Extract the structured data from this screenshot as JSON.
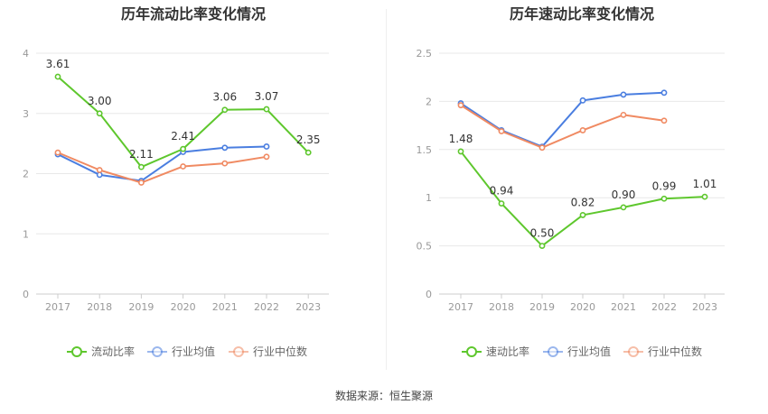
{
  "colors": {
    "main": "#5ec72d",
    "avg": "#4a7ee0",
    "median": "#f08a62"
  },
  "charts": [
    {
      "title": "历年流动比率变化情况",
      "legend": [
        "流动比率",
        "行业均值",
        "行业中位数"
      ]
    },
    {
      "title": "历年速动比率变化情况",
      "legend": [
        "速动比率",
        "行业均值",
        "行业中位数"
      ]
    }
  ],
  "source": "数据来源：恒生聚源",
  "chart_data": [
    {
      "type": "line",
      "title": "历年流动比率变化情况",
      "x": [
        "2017",
        "2018",
        "2019",
        "2020",
        "2021",
        "2022",
        "2023"
      ],
      "ylim": [
        0,
        4
      ],
      "yticks": [
        "0",
        "1",
        "2",
        "3",
        "4"
      ],
      "series": [
        {
          "name": "流动比率",
          "values": [
            3.61,
            3.0,
            2.11,
            2.41,
            3.06,
            3.07,
            2.35
          ],
          "labels": [
            "3.61",
            "3.00",
            "2.11",
            "2.41",
            "3.06",
            "3.07",
            "2.35"
          ]
        },
        {
          "name": "行业均值",
          "values": [
            2.32,
            1.98,
            1.88,
            2.36,
            2.43,
            2.45,
            null
          ]
        },
        {
          "name": "行业中位数",
          "values": [
            2.35,
            2.06,
            1.85,
            2.12,
            2.17,
            2.28,
            null
          ]
        }
      ]
    },
    {
      "type": "line",
      "title": "历年速动比率变化情况",
      "x": [
        "2017",
        "2018",
        "2019",
        "2020",
        "2021",
        "2022",
        "2023"
      ],
      "ylim": [
        0,
        2.5
      ],
      "yticks": [
        "0",
        "0.5",
        "1",
        "1.5",
        "2",
        "2.5"
      ],
      "series": [
        {
          "name": "速动比率",
          "values": [
            1.48,
            0.94,
            0.5,
            0.82,
            0.9,
            0.99,
            1.01
          ],
          "labels": [
            "1.48",
            "0.94",
            "0.50",
            "0.82",
            "0.90",
            "0.99",
            "1.01"
          ]
        },
        {
          "name": "行业均值",
          "values": [
            1.98,
            1.7,
            1.53,
            2.01,
            2.07,
            2.09,
            null
          ]
        },
        {
          "name": "行业中位数",
          "values": [
            1.96,
            1.69,
            1.52,
            1.7,
            1.86,
            1.8,
            null
          ]
        }
      ]
    }
  ]
}
